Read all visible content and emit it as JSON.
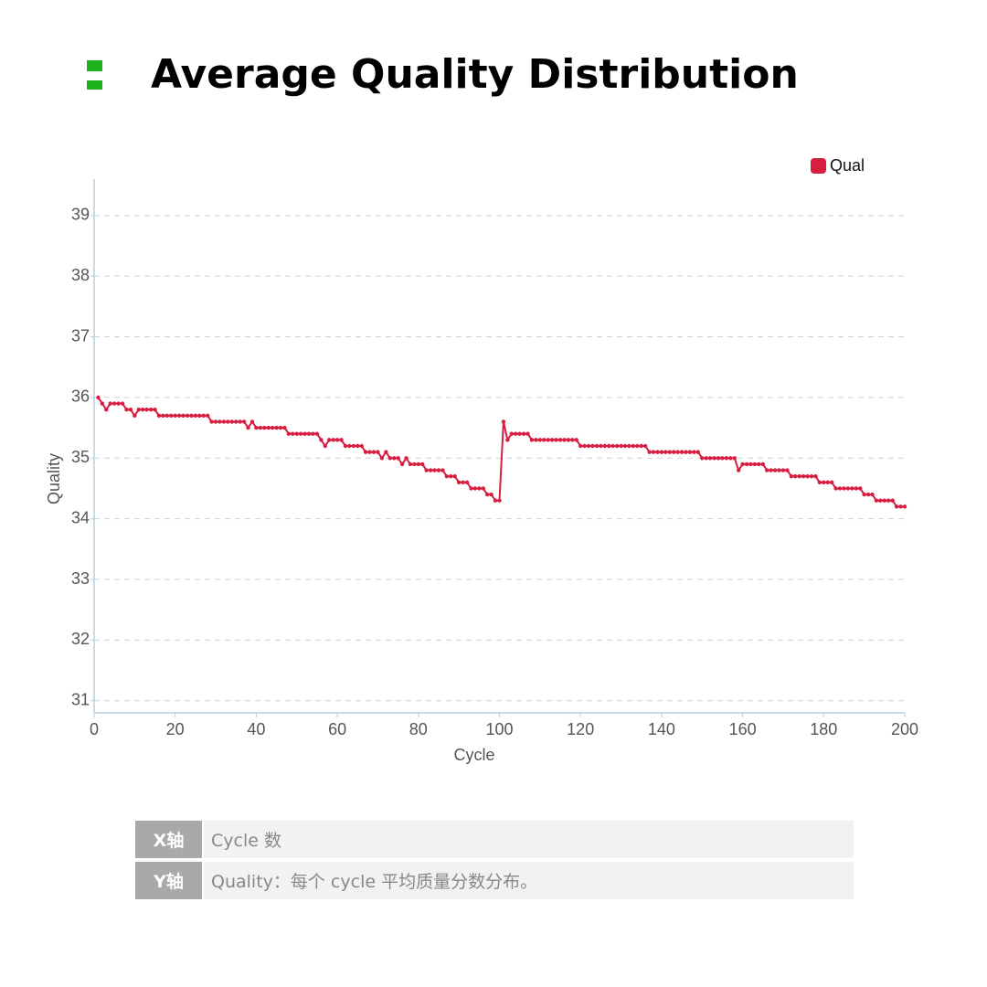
{
  "header": {
    "title": "Average Quality Distribution"
  },
  "chart_data": {
    "type": "line",
    "x_label": "Cycle",
    "y_label": "Quality",
    "legend": "top-right",
    "grid": true,
    "xlim": [
      0,
      200
    ],
    "xticks": [
      0,
      20,
      40,
      60,
      80,
      100,
      120,
      140,
      160,
      180,
      200
    ],
    "ylim": [
      30.8,
      39.6
    ],
    "yticks": [
      31,
      32,
      33,
      34,
      35,
      36,
      37,
      38,
      39
    ],
    "x": [
      1,
      2,
      3,
      4,
      5,
      6,
      7,
      8,
      9,
      10,
      11,
      12,
      13,
      14,
      15,
      16,
      17,
      18,
      19,
      20,
      21,
      22,
      23,
      24,
      25,
      26,
      27,
      28,
      29,
      30,
      31,
      32,
      33,
      34,
      35,
      36,
      37,
      38,
      39,
      40,
      41,
      42,
      43,
      44,
      45,
      46,
      47,
      48,
      49,
      50,
      51,
      52,
      53,
      54,
      55,
      56,
      57,
      58,
      59,
      60,
      61,
      62,
      63,
      64,
      65,
      66,
      67,
      68,
      69,
      70,
      71,
      72,
      73,
      74,
      75,
      76,
      77,
      78,
      79,
      80,
      81,
      82,
      83,
      84,
      85,
      86,
      87,
      88,
      89,
      90,
      91,
      92,
      93,
      94,
      95,
      96,
      97,
      98,
      99,
      100,
      101,
      102,
      103,
      104,
      105,
      106,
      107,
      108,
      109,
      110,
      111,
      112,
      113,
      114,
      115,
      116,
      117,
      118,
      119,
      120,
      121,
      122,
      123,
      124,
      125,
      126,
      127,
      128,
      129,
      130,
      131,
      132,
      133,
      134,
      135,
      136,
      137,
      138,
      139,
      140,
      141,
      142,
      143,
      144,
      145,
      146,
      147,
      148,
      149,
      150,
      151,
      152,
      153,
      154,
      155,
      156,
      157,
      158,
      159,
      160,
      161,
      162,
      163,
      164,
      165,
      166,
      167,
      168,
      169,
      170,
      171,
      172,
      173,
      174,
      175,
      176,
      177,
      178,
      179,
      180,
      181,
      182,
      183,
      184,
      185,
      186,
      187,
      188,
      189,
      190,
      191,
      192,
      193,
      194,
      195,
      196,
      197,
      198,
      199,
      200
    ],
    "series": [
      {
        "name": "Qual",
        "color": "#d81e40",
        "values": [
          36.0,
          35.9,
          35.8,
          35.9,
          35.9,
          35.9,
          35.9,
          35.8,
          35.8,
          35.7,
          35.8,
          35.8,
          35.8,
          35.8,
          35.8,
          35.7,
          35.7,
          35.7,
          35.7,
          35.7,
          35.7,
          35.7,
          35.7,
          35.7,
          35.7,
          35.7,
          35.7,
          35.7,
          35.6,
          35.6,
          35.6,
          35.6,
          35.6,
          35.6,
          35.6,
          35.6,
          35.6,
          35.5,
          35.6,
          35.5,
          35.5,
          35.5,
          35.5,
          35.5,
          35.5,
          35.5,
          35.5,
          35.4,
          35.4,
          35.4,
          35.4,
          35.4,
          35.4,
          35.4,
          35.4,
          35.3,
          35.2,
          35.3,
          35.3,
          35.3,
          35.3,
          35.2,
          35.2,
          35.2,
          35.2,
          35.2,
          35.1,
          35.1,
          35.1,
          35.1,
          35.0,
          35.1,
          35.0,
          35.0,
          35.0,
          34.9,
          35.0,
          34.9,
          34.9,
          34.9,
          34.9,
          34.8,
          34.8,
          34.8,
          34.8,
          34.8,
          34.7,
          34.7,
          34.7,
          34.6,
          34.6,
          34.6,
          34.5,
          34.5,
          34.5,
          34.5,
          34.4,
          34.4,
          34.3,
          34.3,
          35.6,
          35.3,
          35.4,
          35.4,
          35.4,
          35.4,
          35.4,
          35.3,
          35.3,
          35.3,
          35.3,
          35.3,
          35.3,
          35.3,
          35.3,
          35.3,
          35.3,
          35.3,
          35.3,
          35.2,
          35.2,
          35.2,
          35.2,
          35.2,
          35.2,
          35.2,
          35.2,
          35.2,
          35.2,
          35.2,
          35.2,
          35.2,
          35.2,
          35.2,
          35.2,
          35.2,
          35.1,
          35.1,
          35.1,
          35.1,
          35.1,
          35.1,
          35.1,
          35.1,
          35.1,
          35.1,
          35.1,
          35.1,
          35.1,
          35.0,
          35.0,
          35.0,
          35.0,
          35.0,
          35.0,
          35.0,
          35.0,
          35.0,
          34.8,
          34.9,
          34.9,
          34.9,
          34.9,
          34.9,
          34.9,
          34.8,
          34.8,
          34.8,
          34.8,
          34.8,
          34.8,
          34.7,
          34.7,
          34.7,
          34.7,
          34.7,
          34.7,
          34.7,
          34.6,
          34.6,
          34.6,
          34.6,
          34.5,
          34.5,
          34.5,
          34.5,
          34.5,
          34.5,
          34.5,
          34.4,
          34.4,
          34.4,
          34.3,
          34.3,
          34.3,
          34.3,
          34.3,
          34.2,
          34.2,
          34.2
        ]
      }
    ]
  },
  "table": {
    "rows": [
      [
        "X轴",
        "Cycle 数"
      ],
      [
        "Y轴",
        "Quality：每个 cycle 平均质量分数分布。"
      ]
    ]
  }
}
